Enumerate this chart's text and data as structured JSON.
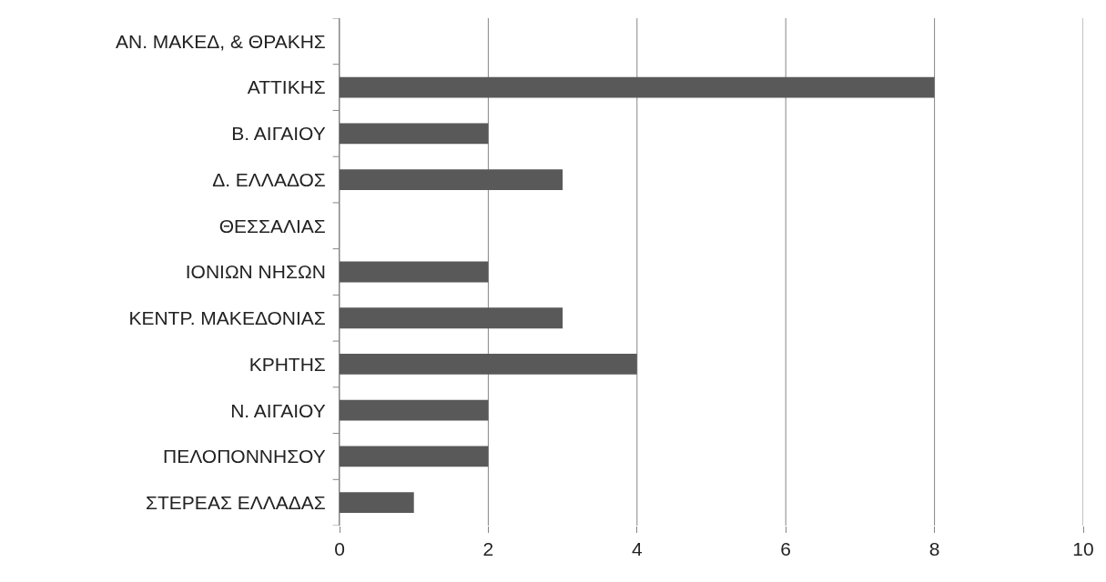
{
  "chart_data": {
    "type": "bar",
    "orientation": "horizontal",
    "categories": [
      "ΑΝ. ΜΑΚΕΔ, & ΘΡΑΚΗΣ",
      "ΑΤΤΙΚΗΣ",
      "Β. ΑΙΓΑΙΟΥ",
      "Δ. ΕΛΛΑΔΟΣ",
      "ΘΕΣΣΑΛΙΑΣ",
      "ΙΟΝΙΩΝ ΝΗΣΩΝ",
      "ΚΕΝΤΡ. ΜΑΚΕΔΟΝΙΑΣ",
      "ΚΡΗΤΗΣ",
      "Ν. ΑΙΓΑΙΟΥ",
      "ΠΕΛΟΠΟΝΝΗΣΟΥ",
      "ΣΤΕΡΕΑΣ ΕΛΛΑΔΑΣ"
    ],
    "values": [
      0,
      8,
      2,
      3,
      0,
      2,
      3,
      4,
      2,
      2,
      1
    ],
    "color": "#595959",
    "xlim": [
      0,
      10
    ],
    "xticks": [
      0,
      2,
      4,
      6,
      8,
      10
    ],
    "grid": "x"
  }
}
